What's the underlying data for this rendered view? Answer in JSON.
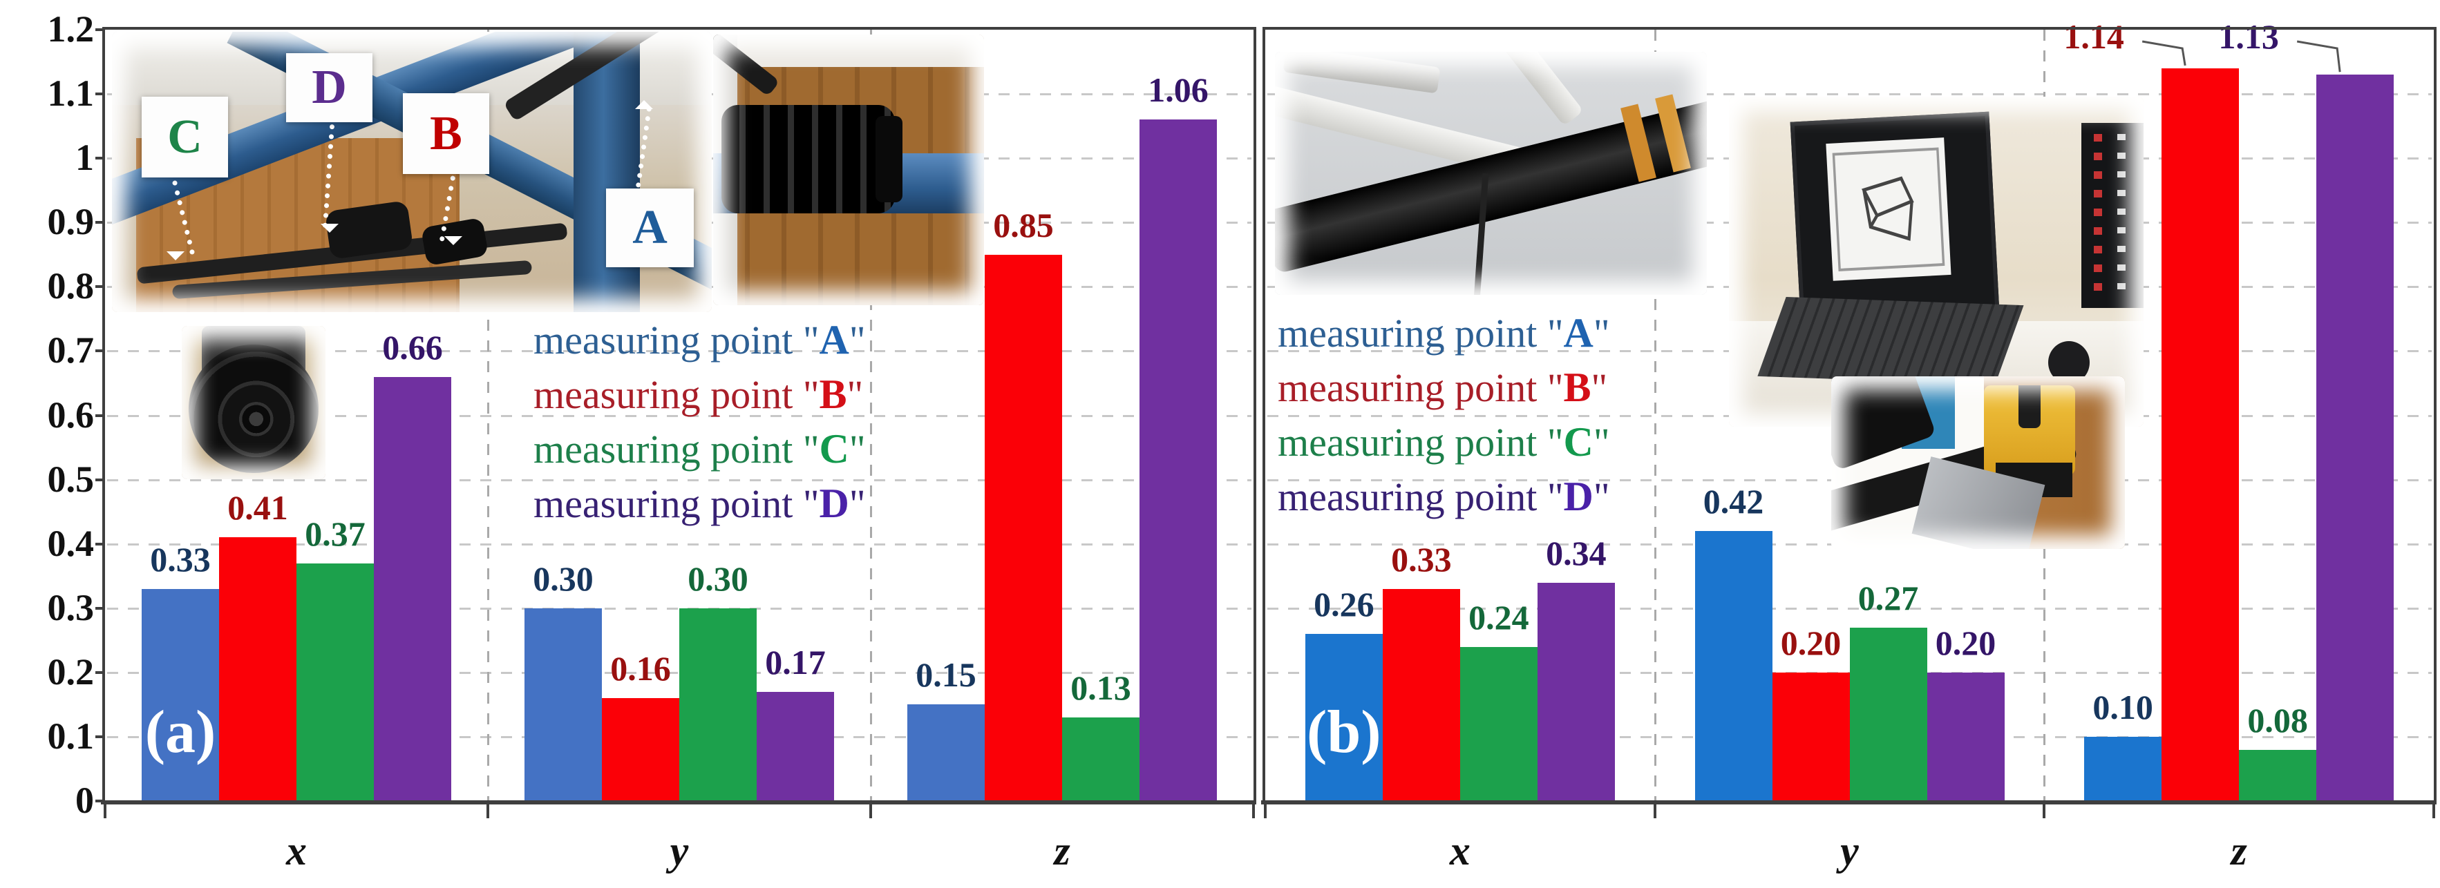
{
  "figure": {
    "panels": [
      {
        "id": "a",
        "label": "(a)"
      },
      {
        "id": "b",
        "label": "(b)"
      }
    ]
  },
  "y_axis": {
    "tick_labels": [
      "1.2",
      "1.1",
      "1",
      "0.9",
      "0.8",
      "0.7",
      "0.6",
      "0.5",
      "0.4",
      "0.3",
      "0.2",
      "0.1",
      "0"
    ],
    "tick_values": [
      1.2,
      1.1,
      1.0,
      0.9,
      0.8,
      0.7,
      0.6,
      0.5,
      0.4,
      0.3,
      0.2,
      0.1,
      0
    ]
  },
  "legend": {
    "lines": [
      {
        "prefix": "measuring point \"",
        "letter": "A",
        "suffix": "\"",
        "text_color": "#2d5f93",
        "letter_color": "#1f63b0"
      },
      {
        "prefix": "measuring point \"",
        "letter": "B",
        "suffix": "\"",
        "text_color": "#a81e28",
        "letter_color": "#d40f17"
      },
      {
        "prefix": "measuring point \"",
        "letter": "C",
        "suffix": "\"",
        "text_color": "#1d7f4a",
        "letter_color": "#13994d"
      },
      {
        "prefix": "measuring point \"",
        "letter": "D",
        "suffix": "\"",
        "text_color": "#372173",
        "letter_color": "#4a21a8"
      }
    ]
  },
  "photo_annotations": {
    "cards": [
      {
        "letter": "C",
        "color": "#1e8449"
      },
      {
        "letter": "D",
        "color": "#5b2d8e"
      },
      {
        "letter": "B",
        "color": "#c00000"
      },
      {
        "letter": "A",
        "color": "#1f5c99"
      }
    ]
  },
  "chart_data": [
    {
      "type": "bar",
      "panel": "(a)",
      "title": "",
      "xlabel": "",
      "ylabel": "",
      "categories": [
        "x",
        "y",
        "z"
      ],
      "ylim": [
        0,
        1.2
      ],
      "grid": true,
      "legend_position": "inside-center",
      "series": [
        {
          "name": "measuring point \"A\"",
          "color": "#4472C4",
          "label_color": "#17365D",
          "values": [
            0.33,
            0.3,
            0.15
          ]
        },
        {
          "name": "measuring point \"B\"",
          "color": "#FB0007",
          "label_color": "#99100F",
          "values": [
            0.41,
            0.16,
            0.85
          ]
        },
        {
          "name": "measuring point \"C\"",
          "color": "#1CA14C",
          "label_color": "#14683A",
          "values": [
            0.37,
            0.3,
            0.13
          ]
        },
        {
          "name": "measuring point \"D\"",
          "color": "#7030A0",
          "label_color": "#341568",
          "values": [
            0.66,
            0.17,
            1.06
          ]
        }
      ]
    },
    {
      "type": "bar",
      "panel": "(b)",
      "title": "",
      "xlabel": "",
      "ylabel": "",
      "categories": [
        "x",
        "y",
        "z"
      ],
      "ylim": [
        0,
        1.2
      ],
      "grid": true,
      "legend_position": "inside-center",
      "series": [
        {
          "name": "measuring point \"A\"",
          "color": "#1B75CE",
          "label_color": "#17365D",
          "values": [
            0.26,
            0.42,
            0.1
          ]
        },
        {
          "name": "measuring point \"B\"",
          "color": "#FB0007",
          "label_color": "#99100F",
          "values": [
            0.33,
            0.2,
            1.14
          ],
          "callouts": [
            2
          ]
        },
        {
          "name": "measuring point \"C\"",
          "color": "#1CA14C",
          "label_color": "#14683A",
          "values": [
            0.24,
            0.27,
            0.08
          ]
        },
        {
          "name": "measuring point \"D\"",
          "color": "#7030A0",
          "label_color": "#341568",
          "values": [
            0.34,
            0.2,
            1.13
          ],
          "callouts": [
            2
          ]
        }
      ]
    }
  ]
}
